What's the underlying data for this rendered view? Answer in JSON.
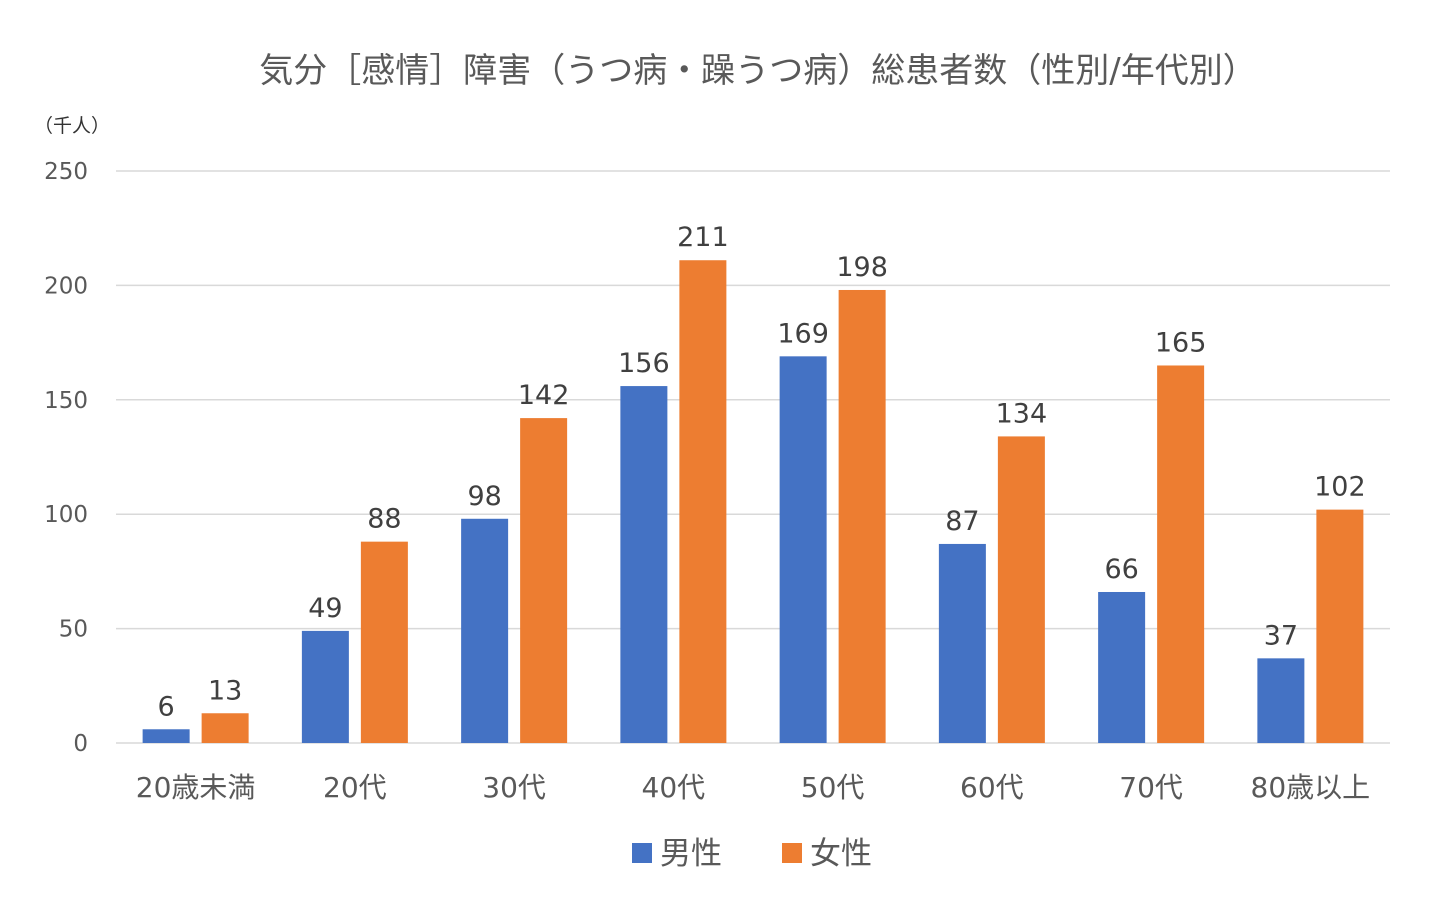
{
  "chart_data": {
    "type": "bar",
    "title": "気分［感情］障害（うつ病・躁うつ病）総患者数（性別/年代別）",
    "unit_label": "（千人）",
    "categories": [
      "20歳未満",
      "20代",
      "30代",
      "40代",
      "50代",
      "60代",
      "70代",
      "80歳以上"
    ],
    "series": [
      {
        "name": "男性",
        "color": "#4472C4",
        "values": [
          6,
          49,
          98,
          156,
          169,
          87,
          66,
          37
        ]
      },
      {
        "name": "女性",
        "color": "#ED7D31",
        "values": [
          13,
          88,
          142,
          211,
          198,
          134,
          165,
          102
        ]
      }
    ],
    "ylim": [
      0,
      250
    ],
    "yticks": [
      0,
      50,
      100,
      150,
      200,
      250
    ],
    "grid": true,
    "data_labels": true,
    "legend_position": "bottom"
  }
}
